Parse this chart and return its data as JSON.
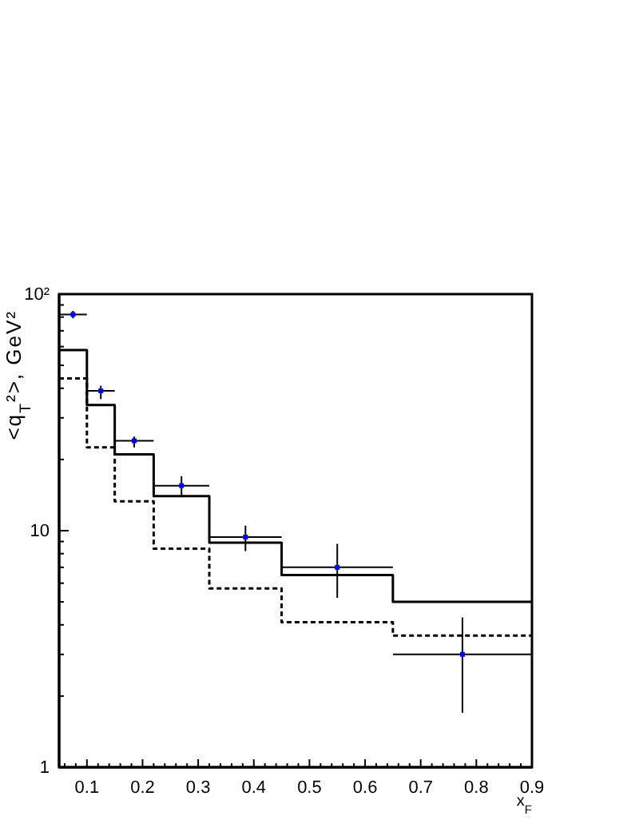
{
  "chart_data": {
    "type": "step",
    "xlabel": "x$_{F}$",
    "ylabel": "<q$_{T}$²>, GeV²",
    "log": true,
    "xlim": [
      0.05,
      0.9
    ],
    "ylim": [
      1,
      100
    ],
    "xticks": [
      {
        "value": 0.06,
        "label": null
      },
      {
        "value": 0.08,
        "label": null
      },
      0.1,
      {
        "value": 0.12,
        "label": null
      },
      {
        "value": 0.14,
        "label": null
      },
      {
        "value": 0.16,
        "label": null
      },
      {
        "value": 0.18,
        "label": null
      },
      0.2,
      {
        "value": 0.22,
        "label": null
      },
      {
        "value": 0.24,
        "label": null
      },
      {
        "value": 0.26,
        "label": null
      },
      {
        "value": 0.28,
        "label": null
      },
      0.3,
      {
        "value": 0.32,
        "label": null
      },
      {
        "value": 0.34,
        "label": null
      },
      {
        "value": 0.36,
        "label": null
      },
      {
        "value": 0.38,
        "label": null
      },
      0.4,
      {
        "value": 0.42,
        "label": null
      },
      {
        "value": 0.44,
        "label": null
      },
      {
        "value": 0.46,
        "label": null
      },
      {
        "value": 0.48,
        "label": null
      },
      0.5,
      {
        "value": 0.52,
        "label": null
      },
      {
        "value": 0.54,
        "label": null
      },
      {
        "value": 0.56,
        "label": null
      },
      {
        "value": 0.58,
        "label": null
      },
      0.6,
      {
        "value": 0.62,
        "label": null
      },
      {
        "value": 0.64,
        "label": null
      },
      {
        "value": 0.66,
        "label": null
      },
      {
        "value": 0.68,
        "label": null
      },
      0.7,
      {
        "value": 0.72,
        "label": null
      },
      {
        "value": 0.74,
        "label": null
      },
      {
        "value": 0.76,
        "label": null
      },
      {
        "value": 0.78,
        "label": null
      },
      0.8,
      {
        "value": 0.82,
        "label": null
      },
      {
        "value": 0.84,
        "label": null
      },
      {
        "value": 0.86,
        "label": null
      },
      {
        "value": 0.88,
        "label": null
      },
      0.9
    ],
    "yticks": [
      1,
      {
        "value": 2,
        "label": null
      },
      {
        "value": 3,
        "label": null
      },
      {
        "value": 4,
        "label": null
      },
      {
        "value": 5,
        "label": null
      },
      {
        "value": 6,
        "label": null
      },
      {
        "value": 7,
        "label": null
      },
      {
        "value": 8,
        "label": null
      },
      {
        "value": 9,
        "label": null
      },
      10,
      {
        "value": 20,
        "label": null
      },
      {
        "value": 30,
        "label": null
      },
      {
        "value": 40,
        "label": null
      },
      {
        "value": 50,
        "label": null
      },
      {
        "value": 60,
        "label": null
      },
      {
        "value": 70,
        "label": null
      },
      {
        "value": 80,
        "label": null
      },
      {
        "value": 90,
        "label": null
      },
      {
        "value": 100,
        "label": "10²"
      }
    ],
    "series": [
      {
        "color": "#000000",
        "line_style": "solid",
        "x": [
          0.05,
          0.1,
          0.15,
          0.22,
          0.32,
          0.45,
          0.65,
          0.9
        ],
        "values": [
          58,
          34,
          21,
          14,
          8.9,
          6.5,
          5.0,
          5.0
        ]
      },
      {
        "color": "#000000",
        "line_style": "dashed",
        "x": [
          0.05,
          0.1,
          0.15,
          0.22,
          0.32,
          0.45,
          0.65,
          0.9
        ],
        "values": [
          44,
          22.5,
          13.3,
          8.4,
          5.7,
          4.1,
          3.6,
          3.6
        ]
      },
      {
        "type": "scatter",
        "color": "#0000ff",
        "marker": "square",
        "x": [
          0.075,
          0.125,
          0.185,
          0.27,
          0.385,
          0.55,
          0.775
        ],
        "values": [
          82,
          39,
          24,
          15.5,
          9.4,
          7,
          3
        ],
        "errors": [
          [
            79,
            85
          ],
          [
            36,
            41
          ],
          [
            22.5,
            25
          ],
          [
            14,
            17
          ],
          [
            8.2,
            10.5
          ],
          [
            5.2,
            8.8
          ],
          [
            1.7,
            4.3
          ]
        ],
        "xerrors": [
          [
            0.05,
            0.1
          ],
          [
            0.1,
            0.15
          ],
          [
            0.15,
            0.22
          ],
          [
            0.22,
            0.32
          ],
          [
            0.32,
            0.45
          ],
          [
            0.45,
            0.65
          ],
          [
            0.65,
            0.9
          ]
        ]
      }
    ]
  }
}
